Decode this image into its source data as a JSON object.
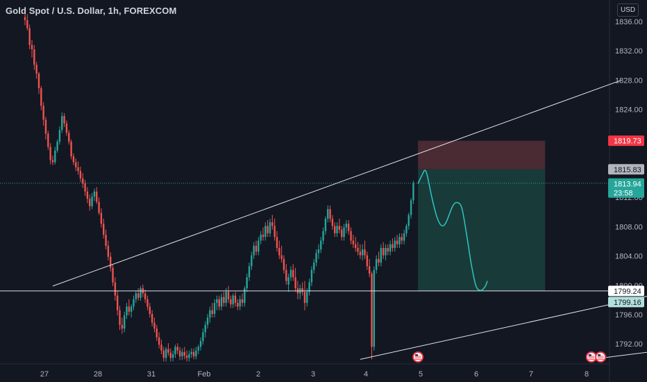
{
  "header": {
    "symbol_title": "Gold Spot / U.S. Dollar, 1h, FOREXCOM",
    "currency_button": "USD"
  },
  "colors": {
    "background": "#131722",
    "up": "#26a69a",
    "down": "#ef5350",
    "stop_zone": "#4a2a33",
    "target_zone": "#183b3a",
    "projection": "#32c5c0",
    "trendline": "#e0e3eb",
    "stop_badge": "#f23645",
    "entry_badge": "#b2b5be",
    "last_price_badge": "#26a69a",
    "level_badge": "#b2dfdb"
  },
  "chart_data": {
    "type": "candlestick",
    "timeframe": "1h",
    "y_axis": {
      "ticks": [
        "1836.00",
        "1832.00",
        "1828.00",
        "1824.00",
        "1812.00",
        "1808.00",
        "1804.00",
        "1800.00",
        "1796.00",
        "1792.00"
      ],
      "range": [
        1789.5,
        1838.5
      ]
    },
    "x_axis": {
      "ticks": [
        "27",
        "28",
        "31",
        "Feb",
        "2",
        "3",
        "4",
        "5",
        "6",
        "7",
        "8"
      ]
    },
    "price_badges": [
      {
        "label": "1819.73",
        "kind": "stop"
      },
      {
        "label": "1815.83",
        "kind": "entry"
      },
      {
        "label": "1813.94",
        "sublabel": "23:58",
        "kind": "last"
      },
      {
        "label": "1799.24",
        "kind": "level"
      },
      {
        "label": "1799.16",
        "kind": "level-light"
      }
    ],
    "horizontal_level": 1799.24,
    "position": {
      "type": "short",
      "entry": 1815.83,
      "stop": 1819.73,
      "target": 1799.24,
      "start_bar": 170,
      "end_bar": 225
    },
    "trendlines": [
      {
        "from": [
          12,
          1799.9
        ],
        "to": [
          258,
          1828.0
        ]
      },
      {
        "from": [
          145,
          1789.9
        ],
        "to": [
          295,
          1800.3
        ]
      },
      {
        "from": [
          245,
          1789.9
        ],
        "to": [
          270,
          1790.9
        ]
      }
    ],
    "projection_path": [
      [
        170,
        1813.9
      ],
      [
        172,
        1815.2
      ],
      [
        173,
        1815.7
      ],
      [
        174,
        1815.0
      ],
      [
        176,
        1812.0
      ],
      [
        178,
        1809.5
      ],
      [
        180,
        1808.2
      ],
      [
        182,
        1808.5
      ],
      [
        185,
        1810.8
      ],
      [
        187,
        1811.3
      ],
      [
        189,
        1810.5
      ],
      [
        191,
        1807.0
      ],
      [
        193,
        1803.0
      ],
      [
        195,
        1800.0
      ],
      [
        197,
        1799.3
      ],
      [
        199,
        1799.8
      ],
      [
        200,
        1800.6
      ]
    ],
    "event_markers": [
      {
        "bar": 170,
        "icon": "us-flag"
      },
      {
        "bar": 245,
        "icon": "us-flag"
      },
      {
        "bar": 249,
        "icon": "us-flag"
      }
    ],
    "candles": [
      [
        1836.6,
        1838,
        1835.5,
        1836.2
      ],
      [
        1836.2,
        1837,
        1834.8,
        1835.1
      ],
      [
        1835.1,
        1835.6,
        1832.2,
        1832.8
      ],
      [
        1832.8,
        1833.5,
        1831.1,
        1832.2
      ],
      [
        1832.2,
        1832.8,
        1829.4,
        1830.1
      ],
      [
        1830.1,
        1830.5,
        1828.2,
        1828.9
      ],
      [
        1828.9,
        1829.1,
        1826.1,
        1826.9
      ],
      [
        1826.9,
        1827.2,
        1823.9,
        1824.5
      ],
      [
        1824.5,
        1825,
        1821.8,
        1822.6
      ],
      [
        1822.6,
        1823,
        1819.9,
        1820.7
      ],
      [
        1820.7,
        1821.1,
        1818.5,
        1818.9
      ],
      [
        1818.9,
        1819.4,
        1816.5,
        1817.1
      ],
      [
        1817.1,
        1817.7,
        1816.4,
        1816.8
      ],
      [
        1816.8,
        1818.9,
        1816.5,
        1818.4
      ],
      [
        1818.4,
        1819.9,
        1818.1,
        1819.6
      ],
      [
        1819.6,
        1821.7,
        1819.2,
        1821.2
      ],
      [
        1821.2,
        1823.6,
        1820.8,
        1823.1
      ],
      [
        1823.1,
        1823.5,
        1821.6,
        1822.1
      ],
      [
        1822.1,
        1822.5,
        1820.4,
        1820.8
      ],
      [
        1820.8,
        1821.2,
        1819.2,
        1819.6
      ],
      [
        1819.6,
        1819.9,
        1817.2,
        1817.6
      ],
      [
        1817.6,
        1818,
        1816.4,
        1816.8
      ],
      [
        1816.8,
        1817.3,
        1815.6,
        1816.1
      ],
      [
        1816.1,
        1816.9,
        1815.1,
        1815.6
      ],
      [
        1815.6,
        1816.2,
        1814.1,
        1814.6
      ],
      [
        1814.6,
        1815.3,
        1813.3,
        1813.9
      ],
      [
        1813.9,
        1814.4,
        1812.2,
        1812.8
      ],
      [
        1812.8,
        1813.4,
        1811.2,
        1811.8
      ],
      [
        1811.8,
        1812.4,
        1810.2,
        1810.8
      ],
      [
        1810.8,
        1812.6,
        1810.4,
        1812.1
      ],
      [
        1812.1,
        1813.2,
        1811.5,
        1812.8
      ],
      [
        1812.8,
        1813.4,
        1811.1,
        1811.4
      ],
      [
        1811.4,
        1812,
        1809.6,
        1809.9
      ],
      [
        1809.9,
        1810.5,
        1807.9,
        1808.4
      ],
      [
        1808.4,
        1809.1,
        1806.4,
        1806.9
      ],
      [
        1806.9,
        1807.6,
        1804.9,
        1805.4
      ],
      [
        1805.4,
        1806.1,
        1803.4,
        1803.9
      ],
      [
        1803.9,
        1804.5,
        1801.9,
        1802.4
      ],
      [
        1802.4,
        1802.9,
        1799.9,
        1800.4
      ],
      [
        1800.4,
        1801.1,
        1797.9,
        1798.6
      ],
      [
        1798.6,
        1799.2,
        1795.9,
        1796.6
      ],
      [
        1796.6,
        1797.2,
        1793.9,
        1794.6
      ],
      [
        1794.6,
        1795.6,
        1793.4,
        1794.1
      ],
      [
        1794.1,
        1796.4,
        1793.6,
        1795.9
      ],
      [
        1795.9,
        1797.6,
        1795.4,
        1797.1
      ],
      [
        1797.1,
        1798.1,
        1795.9,
        1796.4
      ],
      [
        1796.4,
        1797.4,
        1795.6,
        1797.1
      ],
      [
        1797.1,
        1798.6,
        1796.6,
        1798.1
      ],
      [
        1798.1,
        1799.3,
        1797.6,
        1798.9
      ],
      [
        1798.9,
        1799.6,
        1797.9,
        1798.3
      ],
      [
        1798.3,
        1799.9,
        1797.9,
        1799.6
      ],
      [
        1799.6,
        1800.1,
        1798.4,
        1798.9
      ],
      [
        1798.9,
        1799.4,
        1797.6,
        1798.1
      ],
      [
        1798.1,
        1798.6,
        1796.6,
        1797.1
      ],
      [
        1797.1,
        1797.6,
        1795.6,
        1796.1
      ],
      [
        1796.1,
        1796.6,
        1794.4,
        1794.9
      ],
      [
        1794.9,
        1795.6,
        1793.6,
        1794.1
      ],
      [
        1794.1,
        1794.6,
        1792.4,
        1792.9
      ],
      [
        1792.9,
        1793.6,
        1791.4,
        1791.9
      ],
      [
        1791.9,
        1792.6,
        1790.6,
        1791.1
      ],
      [
        1791.1,
        1791.6,
        1789.6,
        1790.1
      ],
      [
        1790.1,
        1791.6,
        1789.6,
        1791.3
      ],
      [
        1791.3,
        1792.1,
        1790.4,
        1790.8
      ],
      [
        1790.8,
        1791.4,
        1789.6,
        1790.1
      ],
      [
        1790.1,
        1791.1,
        1789.6,
        1790.6
      ],
      [
        1790.6,
        1791.9,
        1790.1,
        1791.6
      ],
      [
        1791.6,
        1792.1,
        1790.6,
        1791.1
      ],
      [
        1791.1,
        1791.6,
        1789.8,
        1790.3
      ],
      [
        1790.3,
        1791.4,
        1789.8,
        1790.9
      ],
      [
        1790.9,
        1791.6,
        1789.9,
        1790.4
      ],
      [
        1790.4,
        1791.1,
        1789.6,
        1790.1
      ],
      [
        1790.1,
        1791.1,
        1789.6,
        1790.6
      ],
      [
        1790.6,
        1791.4,
        1790.1,
        1790.9
      ],
      [
        1790.9,
        1791.4,
        1789.9,
        1790.3
      ],
      [
        1790.3,
        1791.6,
        1789.9,
        1791.1
      ],
      [
        1791.1,
        1791.9,
        1790.6,
        1791.6
      ],
      [
        1791.6,
        1792.9,
        1791.1,
        1792.4
      ],
      [
        1792.4,
        1794.1,
        1791.9,
        1793.6
      ],
      [
        1793.6,
        1795.1,
        1792.9,
        1794.6
      ],
      [
        1794.6,
        1796.1,
        1794.1,
        1795.6
      ],
      [
        1795.6,
        1797.1,
        1794.9,
        1796.6
      ],
      [
        1796.6,
        1797.6,
        1795.6,
        1796.1
      ],
      [
        1796.1,
        1798.1,
        1795.6,
        1797.6
      ],
      [
        1797.6,
        1798.6,
        1796.6,
        1798.1
      ],
      [
        1798.1,
        1798.6,
        1796.6,
        1797.1
      ],
      [
        1797.1,
        1798.9,
        1796.6,
        1798.4
      ],
      [
        1798.4,
        1799.1,
        1797.1,
        1797.6
      ],
      [
        1797.6,
        1799.6,
        1797.1,
        1799.1
      ],
      [
        1799.1,
        1799.9,
        1797.6,
        1798.1
      ],
      [
        1798.1,
        1798.6,
        1796.9,
        1797.4
      ],
      [
        1797.4,
        1798.9,
        1796.9,
        1798.6
      ],
      [
        1798.6,
        1799.1,
        1797.1,
        1797.6
      ],
      [
        1797.6,
        1798.1,
        1796.6,
        1797.1
      ],
      [
        1797.1,
        1798.6,
        1796.6,
        1798.1
      ],
      [
        1798.1,
        1798.9,
        1797.1,
        1797.6
      ],
      [
        1797.6,
        1799.9,
        1797.1,
        1799.6
      ],
      [
        1799.6,
        1801.6,
        1799.1,
        1801.1
      ],
      [
        1801.1,
        1803.1,
        1800.6,
        1802.6
      ],
      [
        1802.6,
        1804.6,
        1802.1,
        1804.1
      ],
      [
        1804.1,
        1805.9,
        1803.6,
        1805.4
      ],
      [
        1805.4,
        1806.1,
        1804.1,
        1804.6
      ],
      [
        1804.6,
        1806.6,
        1804.1,
        1806.1
      ],
      [
        1806.1,
        1807.4,
        1805.6,
        1806.9
      ],
      [
        1806.9,
        1807.9,
        1806.1,
        1806.6
      ],
      [
        1806.6,
        1808.6,
        1806.1,
        1808.1
      ],
      [
        1808.1,
        1808.9,
        1806.6,
        1807.1
      ],
      [
        1807.1,
        1809.1,
        1806.6,
        1808.6
      ],
      [
        1808.6,
        1809.6,
        1807.6,
        1808.1
      ],
      [
        1808.1,
        1809.1,
        1806.1,
        1806.6
      ],
      [
        1806.6,
        1807.4,
        1804.6,
        1805.1
      ],
      [
        1805.1,
        1806.1,
        1803.6,
        1804.1
      ],
      [
        1804.1,
        1805.4,
        1803.1,
        1803.6
      ],
      [
        1803.6,
        1804.1,
        1801.6,
        1802.1
      ],
      [
        1802.1,
        1802.9,
        1800.1,
        1800.6
      ],
      [
        1800.1,
        1801.6,
        1799.1,
        1801.1
      ],
      [
        1801.1,
        1802.6,
        1800.6,
        1802.1
      ],
      [
        1802.1,
        1802.9,
        1800.6,
        1801.1
      ],
      [
        1801.1,
        1802.4,
        1799.1,
        1799.6
      ],
      [
        1799.6,
        1800.6,
        1798.1,
        1798.9
      ],
      [
        1798.9,
        1800.1,
        1798.1,
        1799.6
      ],
      [
        1799.6,
        1800.4,
        1798.6,
        1799.1
      ],
      [
        1799.1,
        1800.6,
        1796.6,
        1797.6
      ],
      [
        1797.6,
        1799.6,
        1797.1,
        1799.1
      ],
      [
        1799.1,
        1800.9,
        1798.6,
        1800.4
      ],
      [
        1800.4,
        1802.6,
        1799.9,
        1802.1
      ],
      [
        1802.1,
        1803.6,
        1801.6,
        1803.1
      ],
      [
        1803.1,
        1804.9,
        1802.6,
        1804.4
      ],
      [
        1804.4,
        1805.6,
        1803.6,
        1804.9
      ],
      [
        1804.9,
        1806.6,
        1804.4,
        1806.1
      ],
      [
        1806.1,
        1807.9,
        1805.6,
        1807.4
      ],
      [
        1807.4,
        1809.4,
        1806.9,
        1809.1
      ],
      [
        1809.1,
        1810.9,
        1808.6,
        1810.4
      ],
      [
        1810.4,
        1810.9,
        1808.6,
        1809.1
      ],
      [
        1809.1,
        1809.6,
        1807.6,
        1808.1
      ],
      [
        1808.1,
        1808.6,
        1806.6,
        1807.1
      ],
      [
        1807.1,
        1808.6,
        1806.6,
        1808.1
      ],
      [
        1808.1,
        1809.1,
        1807.1,
        1807.6
      ],
      [
        1807.6,
        1808.1,
        1806.1,
        1806.6
      ],
      [
        1806.6,
        1808.4,
        1806.1,
        1807.9
      ],
      [
        1807.9,
        1808.9,
        1807.1,
        1808.4
      ],
      [
        1808.4,
        1808.9,
        1806.9,
        1807.4
      ],
      [
        1807.4,
        1807.9,
        1805.6,
        1806.1
      ],
      [
        1806.1,
        1806.9,
        1805.1,
        1805.6
      ],
      [
        1805.6,
        1806.6,
        1804.6,
        1805.1
      ],
      [
        1805.1,
        1805.9,
        1804.1,
        1804.6
      ],
      [
        1804.6,
        1805.6,
        1803.6,
        1804.1
      ],
      [
        1804.1,
        1805.6,
        1803.4,
        1804.9
      ],
      [
        1804.9,
        1806.1,
        1803.6,
        1804.1
      ],
      [
        1804.1,
        1804.6,
        1802.1,
        1802.6
      ],
      [
        1802.6,
        1803.6,
        1801.1,
        1801.6
      ],
      [
        1801.6,
        1801.9,
        1789.9,
        1791.6
      ],
      [
        1791.6,
        1802.6,
        1791.1,
        1802.1
      ],
      [
        1802.1,
        1804.1,
        1801.6,
        1803.6
      ],
      [
        1803.6,
        1804.6,
        1802.6,
        1803.1
      ],
      [
        1803.1,
        1805.6,
        1802.6,
        1805.1
      ],
      [
        1805.1,
        1805.9,
        1803.6,
        1804.1
      ],
      [
        1804.1,
        1805.6,
        1803.4,
        1805.1
      ],
      [
        1805.1,
        1805.6,
        1804.1,
        1804.6
      ],
      [
        1804.6,
        1806.1,
        1804.1,
        1805.6
      ],
      [
        1805.6,
        1806.4,
        1804.6,
        1805.1
      ],
      [
        1805.1,
        1806.6,
        1804.6,
        1806.1
      ],
      [
        1806.1,
        1806.9,
        1805.1,
        1805.6
      ],
      [
        1805.6,
        1807.1,
        1805.1,
        1806.6
      ],
      [
        1806.6,
        1807.1,
        1805.6,
        1806.1
      ],
      [
        1806.1,
        1807.6,
        1805.6,
        1807.1
      ],
      [
        1807.1,
        1808.4,
        1806.6,
        1808.1
      ],
      [
        1808.1,
        1809.9,
        1807.6,
        1809.6
      ],
      [
        1809.6,
        1811.9,
        1809.1,
        1811.6
      ],
      [
        1811.6,
        1814.3,
        1811.1,
        1813.94
      ]
    ]
  }
}
